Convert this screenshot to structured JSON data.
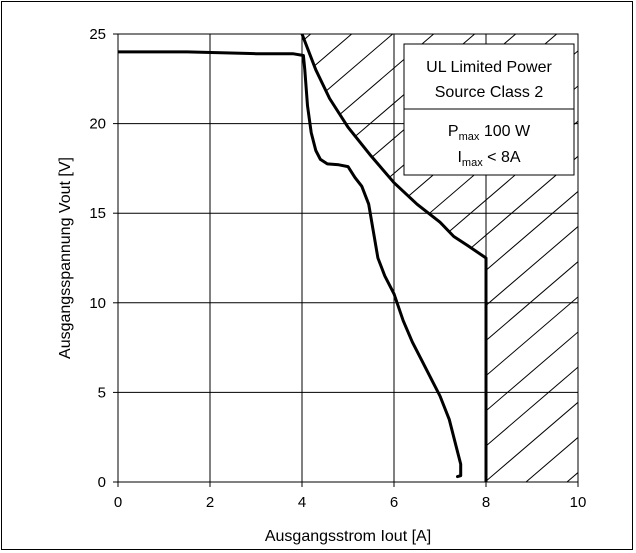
{
  "chart_data": {
    "type": "line",
    "title": "",
    "xlabel": "Ausgangsstrom Iout [A]",
    "ylabel": "Ausgangsspannung Vout [V]",
    "xlim": [
      0,
      10
    ],
    "ylim": [
      0,
      25
    ],
    "x_ticks": [
      0,
      2,
      4,
      6,
      8,
      10
    ],
    "y_ticks": [
      0,
      5,
      10,
      15,
      20,
      25
    ],
    "grid": true,
    "legend_box": {
      "line1": "UL Limited Power",
      "line2": "Source Class 2",
      "pmax_symbol": "P",
      "pmax_sub": "max",
      "pmax_value": " 100 W",
      "imax_symbol": "I",
      "imax_sub": "max",
      "imax_value": " <  8A"
    },
    "hatched_region": {
      "boundary": [
        [
          4.0,
          25
        ],
        [
          4.3,
          23
        ],
        [
          4.6,
          21.4
        ],
        [
          5.0,
          19.8
        ],
        [
          5.5,
          18.2
        ],
        [
          6.0,
          16.7
        ],
        [
          6.5,
          15.5
        ],
        [
          7.0,
          14.5
        ],
        [
          7.3,
          13.7
        ],
        [
          7.6,
          13.2
        ],
        [
          8.0,
          12.5
        ],
        [
          8.0,
          0
        ]
      ],
      "x_max": 10,
      "y_max": 25
    },
    "series": [
      {
        "values": [
          [
            0,
            24.0
          ],
          [
            1.5,
            24.0
          ],
          [
            3.0,
            23.9
          ],
          [
            3.8,
            23.9
          ],
          [
            4.03,
            23.8
          ],
          [
            4.06,
            23.0
          ],
          [
            4.12,
            21.0
          ],
          [
            4.2,
            19.5
          ],
          [
            4.3,
            18.5
          ],
          [
            4.4,
            18.0
          ],
          [
            4.55,
            17.75
          ],
          [
            4.8,
            17.7
          ],
          [
            5.0,
            17.6
          ],
          [
            5.15,
            17.0
          ],
          [
            5.3,
            16.5
          ],
          [
            5.45,
            15.5
          ],
          [
            5.55,
            14.0
          ],
          [
            5.65,
            12.5
          ],
          [
            5.8,
            11.5
          ],
          [
            6.0,
            10.5
          ],
          [
            6.2,
            9.0
          ],
          [
            6.4,
            7.8
          ],
          [
            6.6,
            6.8
          ],
          [
            6.8,
            5.8
          ],
          [
            7.0,
            4.8
          ],
          [
            7.2,
            3.5
          ],
          [
            7.35,
            2.0
          ],
          [
            7.45,
            1.0
          ],
          [
            7.45,
            0.35
          ],
          [
            7.38,
            0.3
          ]
        ]
      },
      {
        "values": [
          [
            4.0,
            25
          ],
          [
            4.3,
            23
          ],
          [
            4.6,
            21.4
          ],
          [
            5.0,
            19.8
          ],
          [
            5.5,
            18.2
          ],
          [
            6.0,
            16.7
          ],
          [
            6.5,
            15.5
          ],
          [
            7.0,
            14.5
          ],
          [
            7.3,
            13.7
          ],
          [
            7.6,
            13.2
          ],
          [
            8.0,
            12.5
          ],
          [
            8.0,
            0
          ]
        ]
      }
    ]
  }
}
